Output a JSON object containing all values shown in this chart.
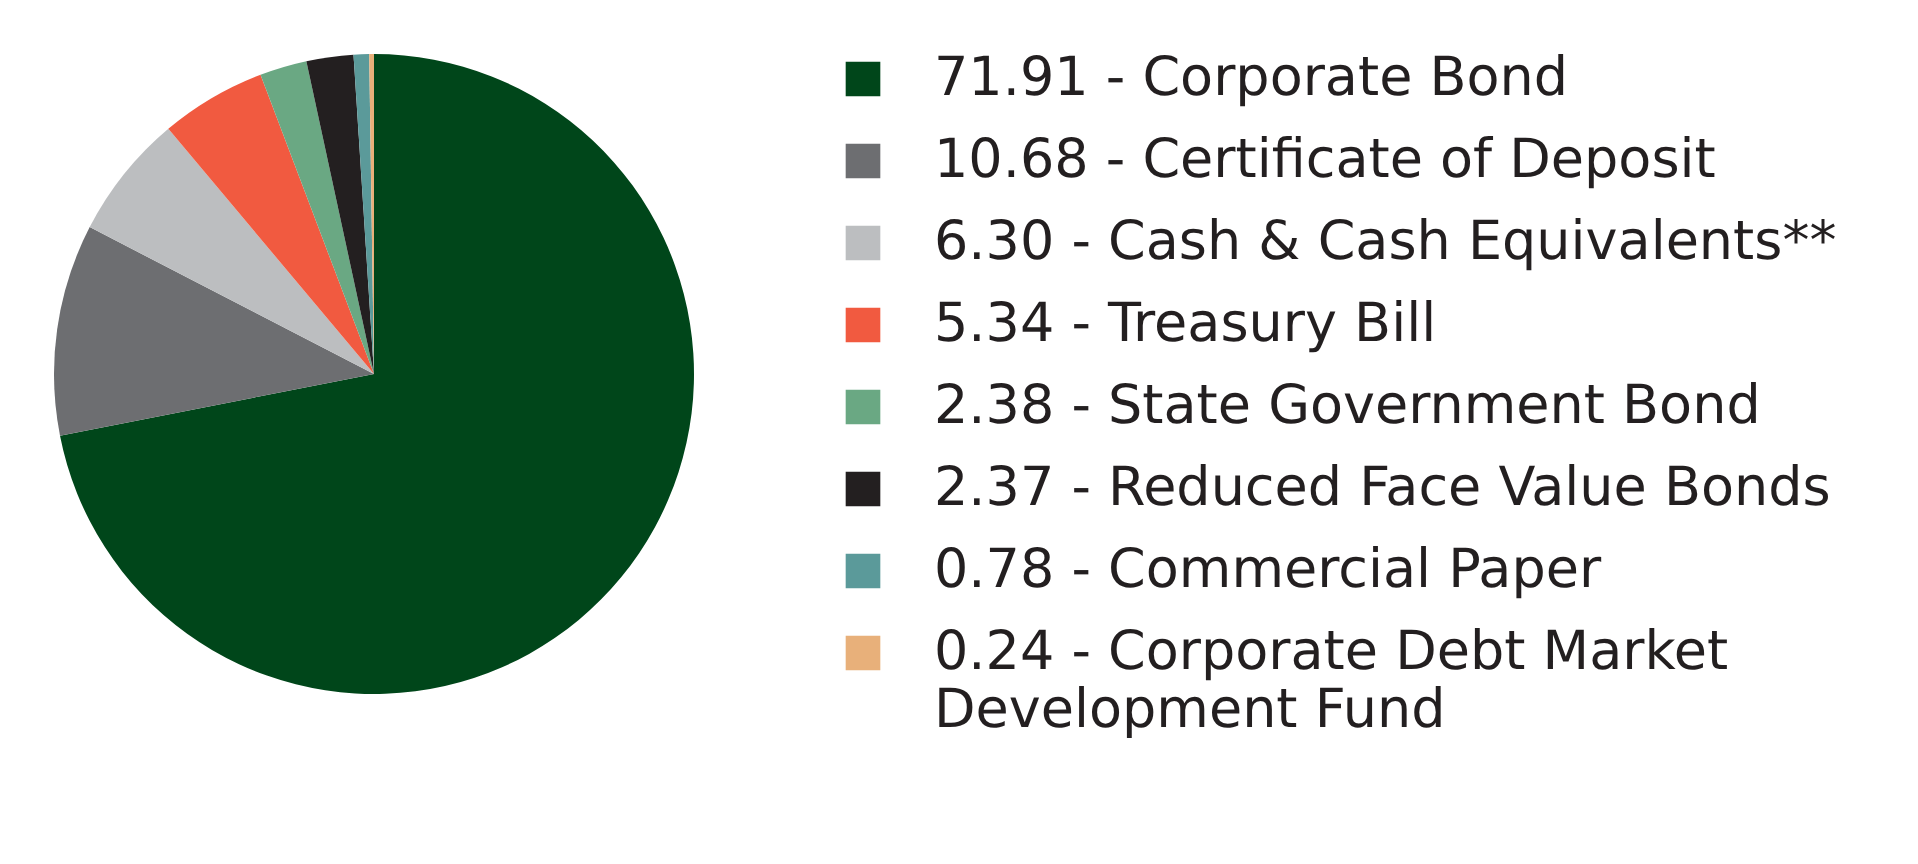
{
  "chart_data": {
    "type": "pie",
    "categories": [
      "71.91 - Corporate Bond",
      "10.68 - Certificate of Deposit",
      "6.30 - Cash & Cash Equivalents**",
      "5.34 - Treasury Bill",
      "2.38 - State Government Bond",
      "2.37 - Reduced Face Value Bonds",
      "0.78 - Commercial Paper",
      "0.24 - Corporate Debt Market Development Fund"
    ],
    "values": [
      71.91,
      10.68,
      6.3,
      5.34,
      2.38,
      2.37,
      0.78,
      0.24
    ],
    "colors": [
      "#00461a",
      "#6d6e71",
      "#bcbec0",
      "#f15a40",
      "#6aa883",
      "#231f20",
      "#5b9a9a",
      "#e8b07a"
    ],
    "legend": "right"
  }
}
